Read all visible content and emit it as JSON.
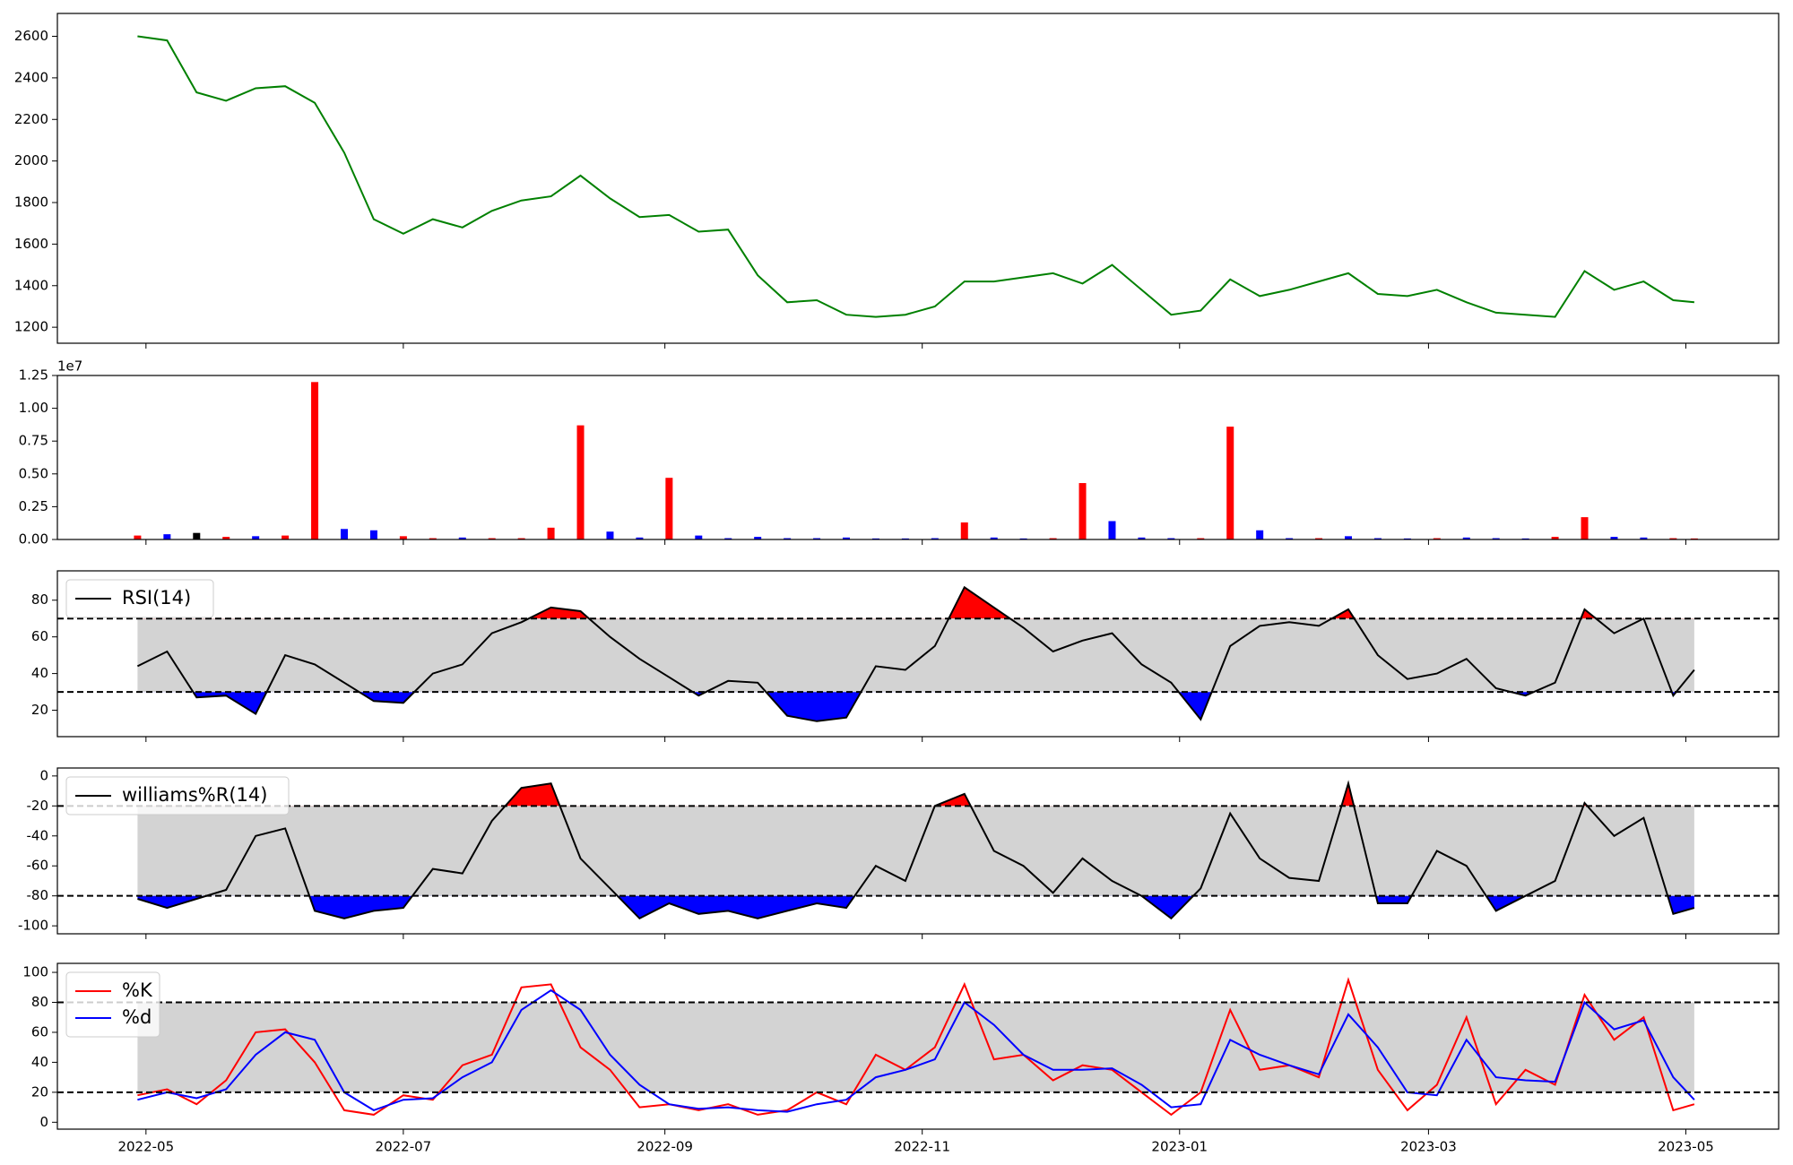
{
  "chart_data": [
    {
      "type": "line",
      "color": "#008000",
      "values": [
        2600,
        2580,
        2330,
        2290,
        2350,
        2360,
        2280,
        2040,
        1720,
        1650,
        1720,
        1680,
        1760,
        1810,
        1830,
        1930,
        1820,
        1730,
        1740,
        1660,
        1670,
        1450,
        1320,
        1330,
        1260,
        1250,
        1260,
        1300,
        1420,
        1420,
        1440,
        1460,
        1410,
        1500,
        1380,
        1260,
        1280,
        1430,
        1350,
        1380,
        1420,
        1460,
        1360,
        1350,
        1380,
        1320,
        1270,
        1260,
        1250,
        1470,
        1380,
        1420,
        1330,
        1320
      ],
      "ylim": [
        1123,
        2710
      ],
      "yticks": [
        1200,
        1400,
        1600,
        1800,
        2000,
        2200,
        2400,
        2600
      ]
    },
    {
      "type": "bar",
      "offset_label": "1e7",
      "values": [
        300000,
        400000,
        500000,
        200000,
        250000,
        300000,
        12000000,
        800000,
        700000,
        250000,
        100000,
        150000,
        100000,
        100000,
        900000,
        8700000,
        600000,
        150000,
        4700000,
        300000,
        100000,
        200000,
        100000,
        100000,
        150000,
        80000,
        80000,
        100000,
        1300000,
        150000,
        80000,
        100000,
        4300000,
        1400000,
        150000,
        100000,
        100000,
        8600000,
        700000,
        100000,
        100000,
        250000,
        100000,
        80000,
        100000,
        150000,
        100000,
        80000,
        200000,
        1700000,
        200000,
        150000,
        100000,
        80000
      ],
      "colors": [
        "#ff0000",
        "#0000ff",
        "#000000",
        "#ff0000",
        "#0000ff",
        "#ff0000",
        "#ff0000",
        "#0000ff",
        "#0000ff",
        "#ff0000",
        "#ff0000",
        "#0000ff",
        "#ff0000",
        "#ff0000",
        "#ff0000",
        "#ff0000",
        "#0000ff",
        "#0000ff",
        "#ff0000",
        "#0000ff",
        "#0000ff",
        "#0000ff",
        "#0000ff",
        "#0000ff",
        "#0000ff",
        "#0000ff",
        "#0000ff",
        "#0000ff",
        "#ff0000",
        "#0000ff",
        "#0000ff",
        "#ff0000",
        "#ff0000",
        "#0000ff",
        "#0000ff",
        "#0000ff",
        "#ff0000",
        "#ff0000",
        "#0000ff",
        "#0000ff",
        "#ff0000",
        "#0000ff",
        "#0000ff",
        "#0000ff",
        "#ff0000",
        "#0000ff",
        "#0000ff",
        "#0000ff",
        "#ff0000",
        "#ff0000",
        "#0000ff",
        "#0000ff",
        "#ff0000",
        "#ff0000"
      ],
      "ylim": [
        0,
        12500000
      ],
      "yticks": [
        {
          "value": 0,
          "label": "0.00"
        },
        {
          "value": 2500000,
          "label": "0.25"
        },
        {
          "value": 5000000,
          "label": "0.50"
        },
        {
          "value": 7500000,
          "label": "0.75"
        },
        {
          "value": 10000000,
          "label": "1.00"
        },
        {
          "value": 12500000,
          "label": "1.25"
        }
      ]
    },
    {
      "type": "line",
      "thresholds": [
        30,
        70
      ],
      "band_color": "#d3d3d3",
      "above_color": "#ff0000",
      "below_color": "#0000ff",
      "legend": "upper left",
      "series": [
        {
          "name": "RSI(14)",
          "color": "#000000",
          "values": [
            44,
            52,
            27,
            28,
            18,
            50,
            45,
            35,
            25,
            24,
            40,
            45,
            62,
            68,
            76,
            74,
            60,
            48,
            38,
            28,
            36,
            35,
            17,
            14,
            16,
            44,
            42,
            55,
            87,
            76,
            65,
            52,
            58,
            62,
            45,
            35,
            15,
            55,
            66,
            68,
            66,
            75,
            50,
            37,
            40,
            48,
            32,
            28,
            35,
            75,
            62,
            70,
            28,
            42
          ]
        }
      ],
      "ylim": [
        5.6,
        96
      ],
      "yticks": [
        20,
        40,
        60,
        80
      ]
    },
    {
      "type": "line",
      "thresholds": [
        -80,
        -20
      ],
      "band_color": "#d3d3d3",
      "above_color": "#ff0000",
      "below_color": "#0000ff",
      "legend": "upper left",
      "series": [
        {
          "name": "williams%R(14)",
          "color": "#000000",
          "values": [
            -82,
            -88,
            -82,
            -76,
            -40,
            -35,
            -90,
            -95,
            -90,
            -88,
            -62,
            -65,
            -30,
            -8,
            -5,
            -55,
            -75,
            -95,
            -85,
            -92,
            -90,
            -95,
            -90,
            -85,
            -88,
            -60,
            -70,
            -20,
            -12,
            -50,
            -60,
            -78,
            -55,
            -70,
            -80,
            -95,
            -75,
            -25,
            -55,
            -68,
            -70,
            -5,
            -85,
            -85,
            -50,
            -60,
            -90,
            -80,
            -70,
            -18,
            -40,
            -28,
            -92,
            -88
          ]
        }
      ],
      "ylim": [
        -105.3,
        5.3
      ],
      "yticks": [
        -100,
        -80,
        -60,
        -40,
        -20,
        0
      ]
    },
    {
      "type": "line",
      "thresholds": [
        20,
        80
      ],
      "band_color": "#d3d3d3",
      "legend": "upper left",
      "x": [
        "2022-04-29",
        "2022-05-06",
        "2022-05-13",
        "2022-05-20",
        "2022-05-27",
        "2022-06-03",
        "2022-06-10",
        "2022-06-17",
        "2022-06-24",
        "2022-07-01",
        "2022-07-08",
        "2022-07-15",
        "2022-07-22",
        "2022-07-29",
        "2022-08-05",
        "2022-08-12",
        "2022-08-19",
        "2022-08-26",
        "2022-09-02",
        "2022-09-09",
        "2022-09-16",
        "2022-09-23",
        "2022-09-30",
        "2022-10-07",
        "2022-10-14",
        "2022-10-21",
        "2022-10-28",
        "2022-11-04",
        "2022-11-11",
        "2022-11-18",
        "2022-11-25",
        "2022-12-02",
        "2022-12-09",
        "2022-12-16",
        "2022-12-23",
        "2022-12-30",
        "2023-01-06",
        "2023-01-13",
        "2023-01-20",
        "2023-01-27",
        "2023-02-03",
        "2023-02-10",
        "2023-02-17",
        "2023-02-24",
        "2023-03-03",
        "2023-03-10",
        "2023-03-17",
        "2023-03-24",
        "2023-03-31",
        "2023-04-07",
        "2023-04-14",
        "2023-04-21",
        "2023-04-28",
        "2023-05-03"
      ],
      "xlim": [
        "2022-04-10",
        "2023-05-23"
      ],
      "xticks": [
        {
          "value": "2022-05-01",
          "label": "2022-05"
        },
        {
          "value": "2022-07-01",
          "label": "2022-07"
        },
        {
          "value": "2022-09-01",
          "label": "2022-09"
        },
        {
          "value": "2022-11-01",
          "label": "2022-11"
        },
        {
          "value": "2023-01-01",
          "label": "2023-01"
        },
        {
          "value": "2023-03-01",
          "label": "2023-03"
        },
        {
          "value": "2023-05-01",
          "label": "2023-05"
        }
      ],
      "series": [
        {
          "name": "%K",
          "color": "#ff0000",
          "values": [
            18,
            22,
            12,
            28,
            60,
            62,
            40,
            8,
            5,
            18,
            15,
            38,
            45,
            90,
            92,
            50,
            35,
            10,
            12,
            8,
            12,
            5,
            8,
            20,
            12,
            45,
            35,
            50,
            92,
            42,
            45,
            28,
            38,
            35,
            20,
            5,
            20,
            75,
            35,
            38,
            30,
            95,
            35,
            8,
            25,
            70,
            12,
            35,
            25,
            85,
            55,
            70,
            8,
            12
          ]
        },
        {
          "name": "%d",
          "color": "#0000ff",
          "values": [
            15,
            20,
            16,
            22,
            45,
            60,
            55,
            20,
            8,
            15,
            16,
            30,
            40,
            75,
            88,
            75,
            45,
            25,
            12,
            9,
            10,
            8,
            7,
            12,
            15,
            30,
            35,
            42,
            80,
            65,
            45,
            35,
            35,
            36,
            25,
            10,
            12,
            55,
            45,
            38,
            32,
            72,
            50,
            20,
            18,
            55,
            30,
            28,
            27,
            80,
            62,
            68,
            30,
            15
          ]
        }
      ],
      "ylim": [
        -4.6,
        106
      ],
      "yticks": [
        0,
        20,
        40,
        60,
        80,
        100
      ]
    }
  ]
}
